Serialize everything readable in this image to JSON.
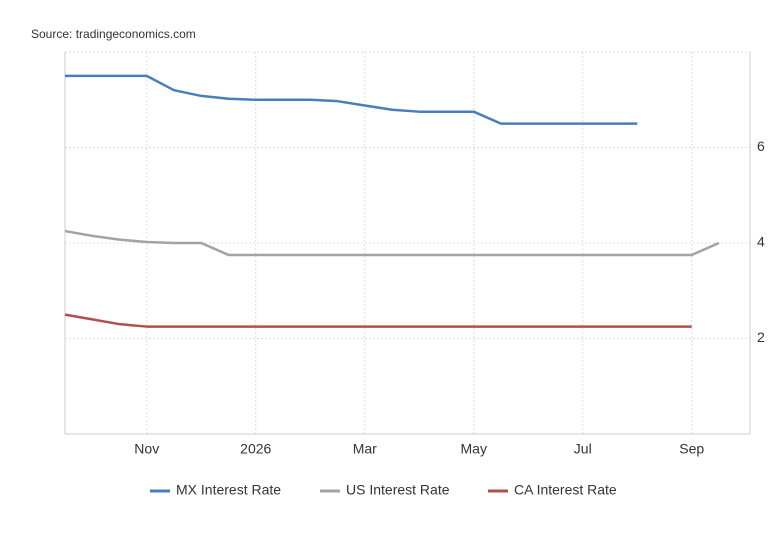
{
  "chart_data": {
    "type": "line",
    "source": "Source: tradingeconomics.com",
    "categories": [
      null,
      null,
      null,
      "Nov",
      null,
      null,
      null,
      "2026",
      null,
      null,
      null,
      "Mar",
      null,
      null,
      null,
      "May",
      null,
      null,
      null,
      "Jul",
      null,
      null,
      null,
      "Sep",
      null,
      null
    ],
    "series": [
      {
        "name": "MX Interest Rate",
        "color": "#4a7ebb",
        "values": [
          7.5,
          7.5,
          7.5,
          7.5,
          7.2,
          7.08,
          7.02,
          7.0,
          7.0,
          7.0,
          6.97,
          6.88,
          6.79,
          6.75,
          6.75,
          6.75,
          6.5,
          6.5,
          6.5,
          6.5,
          6.5,
          6.5,
          null,
          null,
          null,
          null
        ]
      },
      {
        "name": "US Interest Rate",
        "color": "#a3a3a3",
        "values": [
          4.25,
          4.15,
          4.07,
          4.02,
          4.0,
          4.0,
          3.75,
          3.75,
          3.75,
          3.75,
          3.75,
          3.75,
          3.75,
          3.75,
          3.75,
          3.75,
          3.75,
          3.75,
          3.75,
          3.75,
          3.75,
          3.75,
          3.75,
          3.75,
          4.0,
          null
        ]
      },
      {
        "name": "CA Interest Rate",
        "color": "#b0504b",
        "values": [
          2.5,
          2.4,
          2.3,
          2.25,
          2.25,
          2.25,
          2.25,
          2.25,
          2.25,
          2.25,
          2.25,
          2.25,
          2.25,
          2.25,
          2.25,
          2.25,
          2.25,
          2.25,
          2.25,
          2.25,
          2.25,
          2.25,
          2.25,
          2.25,
          null,
          null
        ]
      }
    ],
    "ylim": [
      0,
      8
    ],
    "yticks": [
      2,
      4,
      6
    ],
    "grid": true
  }
}
